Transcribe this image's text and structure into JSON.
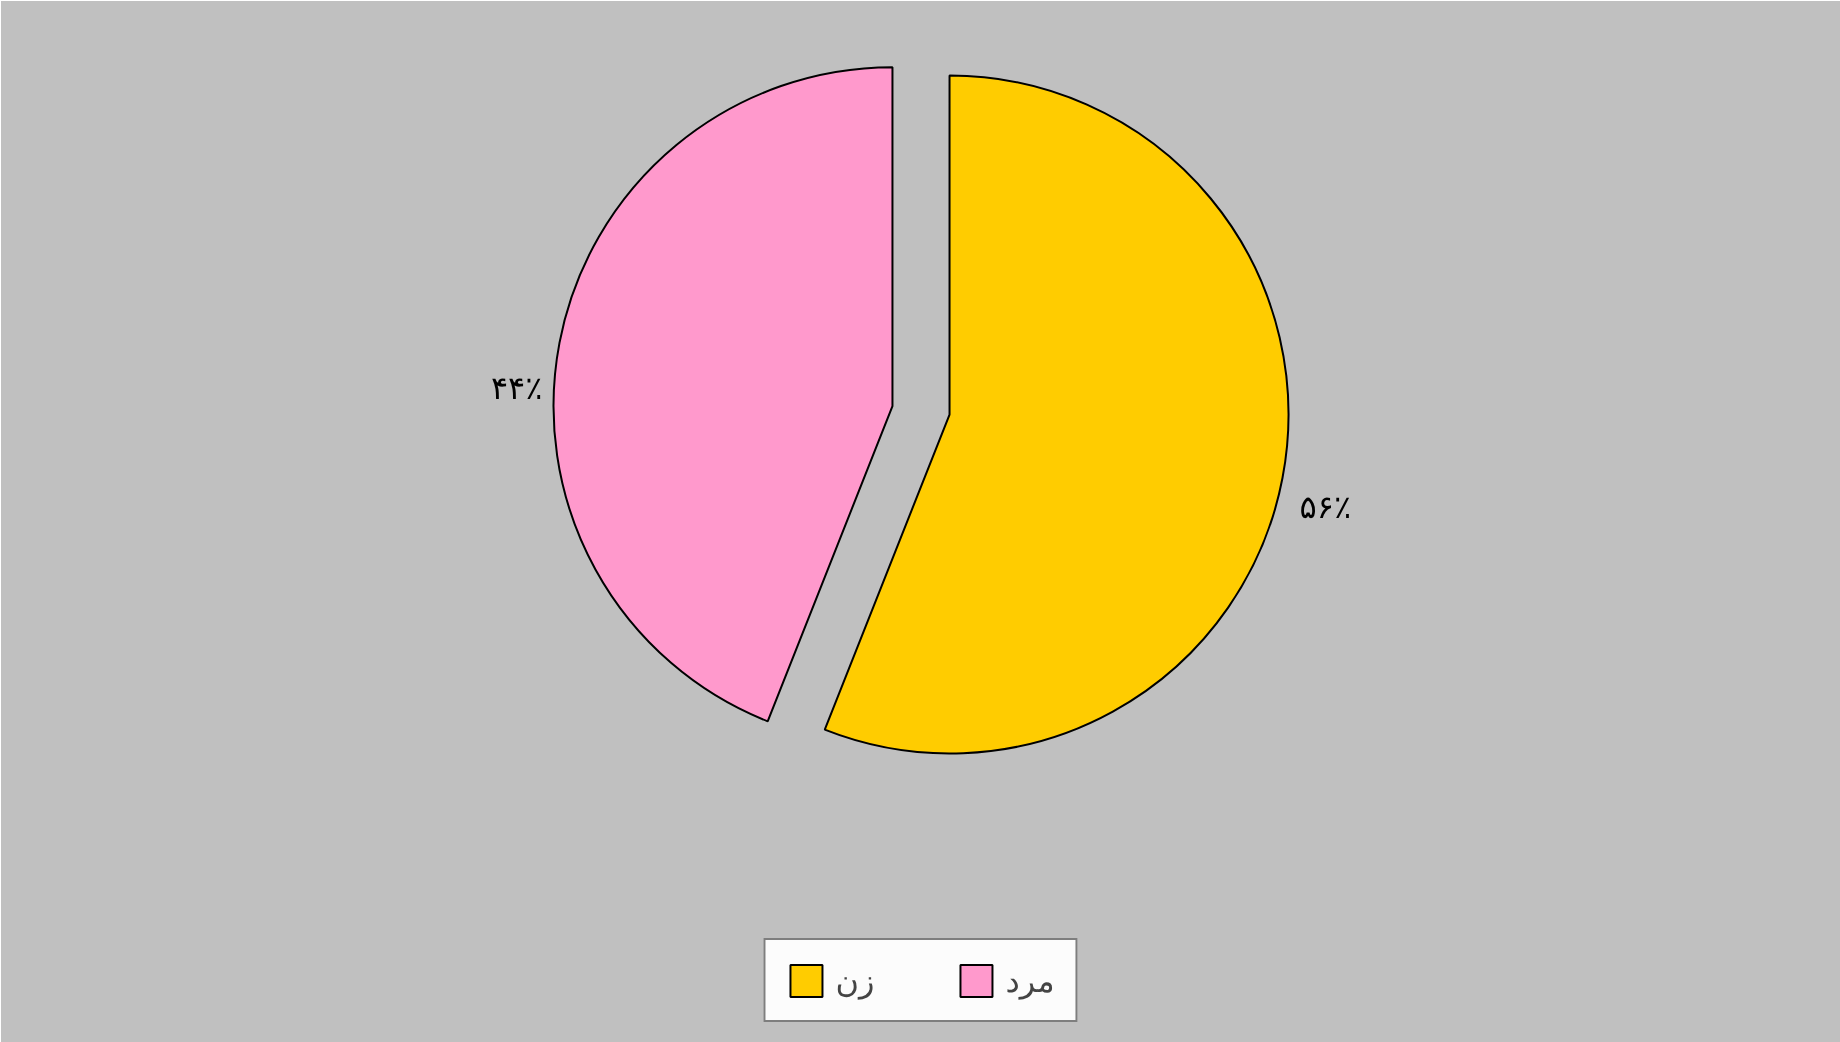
{
  "chart_data": {
    "type": "pie",
    "categories": [
      "زن",
      "مرد"
    ],
    "values": [
      56,
      44
    ],
    "colors": [
      "#ffcc00",
      "#ff99cc"
    ],
    "value_labels": [
      "۵۶٪",
      "۴۴٪"
    ],
    "legend": "bottom"
  }
}
